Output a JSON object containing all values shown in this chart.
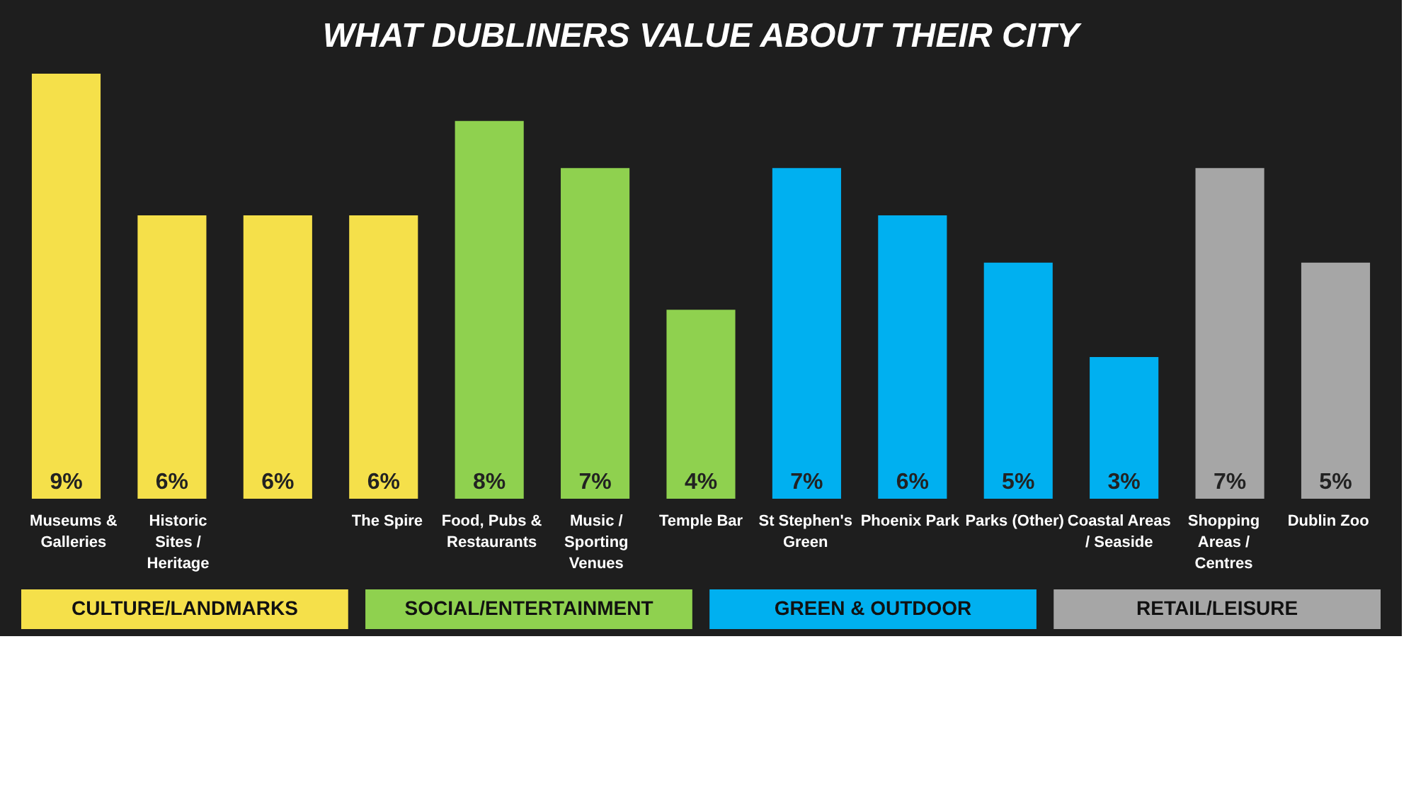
{
  "chart_data": {
    "type": "bar",
    "title": "WHAT DUBLINERS VALUE ABOUT THEIR CITY",
    "categories": [
      "Museums & Galleries",
      "Historic Sites / Heritage",
      null,
      "The Spire",
      "Food, Pubs & Restaurants",
      "Music / Sporting Venues",
      "Temple Bar",
      "St Stephen's Green",
      "Phoenix Park",
      "Parks (Other)",
      "Coastal Areas / Seaside",
      "Shopping Areas / Centres",
      "Dublin Zoo"
    ],
    "series": [
      {
        "name": "CULTURE/LANDMARKS",
        "color": "#f5e04a",
        "values": [
          9,
          6,
          6,
          6,
          null,
          null,
          null,
          null,
          null,
          null,
          null,
          null,
          null
        ],
        "value_labels": [
          "9%",
          "6%",
          "6%",
          "6%",
          null,
          null,
          null,
          null,
          null,
          null,
          null,
          null,
          null
        ]
      },
      {
        "name": "SOCIAL/ENTERTAINMENT",
        "color": "#8fd14f",
        "values": [
          null,
          null,
          null,
          null,
          8,
          7,
          4,
          null,
          null,
          null,
          null,
          null,
          null
        ],
        "value_labels": [
          null,
          null,
          null,
          null,
          "8%",
          "7%",
          "4%",
          null,
          null,
          null,
          null,
          null,
          null
        ]
      },
      {
        "name": "GREEN & OUTDOOR",
        "color": "#00b0f0",
        "values": [
          null,
          null,
          null,
          null,
          null,
          null,
          null,
          7,
          6,
          5,
          3,
          null,
          null
        ],
        "value_labels": [
          null,
          null,
          null,
          null,
          null,
          null,
          null,
          "7%",
          "6%",
          "5%",
          "3%",
          null,
          null
        ]
      },
      {
        "name": "RETAIL/LEISURE",
        "color": "#a6a6a6",
        "values": [
          null,
          null,
          null,
          null,
          null,
          null,
          null,
          null,
          null,
          null,
          null,
          7,
          5
        ],
        "value_labels": [
          null,
          null,
          null,
          null,
          null,
          null,
          null,
          null,
          null,
          null,
          null,
          "7%",
          "5%"
        ]
      }
    ],
    "legend": "bottom",
    "grid": false
  }
}
